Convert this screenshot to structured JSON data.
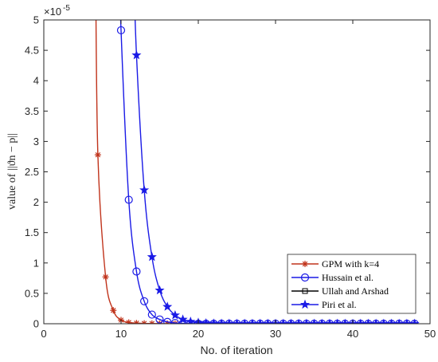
{
  "chart_data": {
    "type": "line",
    "xlabel": "No. of iteration",
    "ylabel": "value of ||ϑn − p||",
    "y_exponent": "×10",
    "y_exponent_power": "-5",
    "xlim": [
      0,
      50
    ],
    "ylim": [
      0,
      5
    ],
    "xticks": [
      0,
      10,
      20,
      30,
      40,
      50
    ],
    "yticks": [
      0,
      0.5,
      1,
      1.5,
      2,
      2.5,
      3,
      3.5,
      4,
      4.5,
      5
    ],
    "legend_position": "bottom-right",
    "grid": false,
    "series": [
      {
        "name": "GPM with k=4",
        "color": "#c0331b",
        "marker": "asterisk",
        "x": [
          7,
          8,
          9,
          10,
          11,
          12,
          13,
          14,
          15,
          16,
          17
        ],
        "y": [
          2.78,
          0.77,
          0.22,
          0.06,
          0.02,
          0.01,
          0.005,
          0.003,
          0.002,
          0.001,
          0.001
        ]
      },
      {
        "name": "Hussain et al.",
        "color": "#1a1ae6",
        "marker": "circle",
        "x": [
          10,
          11,
          12,
          13,
          14,
          15,
          16,
          17,
          18,
          19,
          20,
          21,
          22,
          23,
          24,
          25,
          26,
          27,
          28,
          29,
          30,
          31,
          32,
          33,
          34,
          35,
          36,
          37,
          38,
          39,
          40,
          41,
          42,
          43,
          44,
          45,
          46,
          47,
          48
        ],
        "y": [
          4.83,
          2.04,
          0.86,
          0.37,
          0.15,
          0.07,
          0.03,
          0.012,
          0.005,
          0.002,
          0.001,
          0,
          0,
          0,
          0,
          0,
          0,
          0,
          0,
          0,
          0,
          0,
          0,
          0,
          0,
          0,
          0,
          0,
          0,
          0,
          0,
          0,
          0,
          0,
          0,
          0,
          0,
          0,
          0
        ]
      },
      {
        "name": "Ullah and Arshad",
        "color": "#000000",
        "marker": "square",
        "x": [],
        "y": []
      },
      {
        "name": "Piri et al.",
        "color": "#1a1ae6",
        "marker": "star",
        "x": [
          12,
          13,
          14,
          15,
          16,
          17,
          18,
          19,
          20,
          21,
          22,
          23,
          24,
          25,
          26,
          27,
          28,
          29,
          30,
          31,
          32,
          33,
          34,
          35,
          36,
          37,
          38,
          39,
          40,
          41,
          42,
          43,
          44,
          45,
          46,
          47,
          48
        ],
        "y": [
          4.42,
          2.2,
          1.1,
          0.55,
          0.28,
          0.14,
          0.07,
          0.035,
          0.018,
          0.009,
          0.004,
          0.002,
          0.001,
          0,
          0,
          0,
          0,
          0,
          0,
          0,
          0,
          0,
          0,
          0,
          0,
          0,
          0,
          0,
          0,
          0,
          0,
          0,
          0,
          0,
          0,
          0,
          0
        ]
      }
    ]
  }
}
